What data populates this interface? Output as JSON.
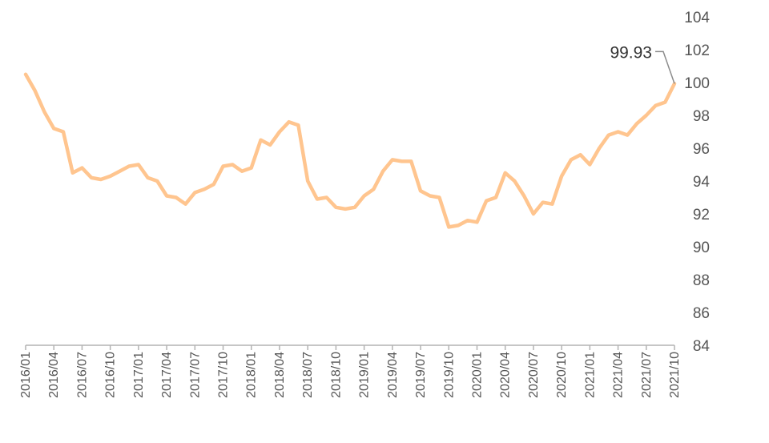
{
  "chart_data": {
    "type": "line",
    "title": "",
    "xlabel": "",
    "ylabel": "",
    "ylim": [
      84,
      104
    ],
    "yticks": [
      "84",
      "86",
      "88",
      "90",
      "92",
      "94",
      "96",
      "98",
      "100",
      "102",
      "104"
    ],
    "y_axis_position": "right",
    "grid": false,
    "legend": "none",
    "xticks": [
      "2016/01",
      "2016/04",
      "2016/07",
      "2016/10",
      "2017/01",
      "2017/04",
      "2017/07",
      "2017/10",
      "2018/01",
      "2018/04",
      "2018/07",
      "2018/10",
      "2019/01",
      "2019/04",
      "2019/07",
      "2019/10",
      "2020/01",
      "2020/04",
      "2020/07",
      "2020/10",
      "2021/01",
      "2021/04",
      "2021/07",
      "2021/10"
    ],
    "line_color": "#FFC58F",
    "annotation": {
      "text": "99.93",
      "x": "2021/10",
      "y": 99.93
    },
    "series": [
      {
        "x": [
          "2016/01",
          "2016/02",
          "2016/03",
          "2016/04",
          "2016/05",
          "2016/06",
          "2016/07",
          "2016/08",
          "2016/09",
          "2016/10",
          "2016/11",
          "2016/12",
          "2017/01",
          "2017/02",
          "2017/03",
          "2017/04",
          "2017/05",
          "2017/06",
          "2017/07",
          "2017/08",
          "2017/09",
          "2017/10",
          "2017/11",
          "2017/12",
          "2018/01",
          "2018/02",
          "2018/03",
          "2018/04",
          "2018/05",
          "2018/06",
          "2018/07",
          "2018/08",
          "2018/09",
          "2018/10",
          "2018/11",
          "2018/12",
          "2019/01",
          "2019/02",
          "2019/03",
          "2019/04",
          "2019/05",
          "2019/06",
          "2019/07",
          "2019/08",
          "2019/09",
          "2019/10",
          "2019/11",
          "2019/12",
          "2020/01",
          "2020/02",
          "2020/03",
          "2020/04",
          "2020/05",
          "2020/06",
          "2020/07",
          "2020/08",
          "2020/09",
          "2020/10",
          "2020/11",
          "2020/12",
          "2021/01",
          "2021/02",
          "2021/03",
          "2021/04",
          "2021/05",
          "2021/06",
          "2021/07",
          "2021/08",
          "2021/09",
          "2021/10"
        ],
        "values": [
          100.5,
          99.5,
          98.2,
          97.2,
          97.0,
          94.5,
          94.8,
          94.2,
          94.1,
          94.3,
          94.6,
          94.9,
          95.0,
          94.2,
          94.0,
          93.1,
          93.0,
          92.6,
          93.3,
          93.5,
          93.8,
          94.9,
          95.0,
          94.6,
          94.8,
          96.5,
          96.2,
          97.0,
          97.6,
          97.4,
          94.0,
          92.9,
          93.0,
          92.4,
          92.3,
          92.4,
          93.1,
          93.5,
          94.6,
          95.3,
          95.2,
          95.2,
          93.4,
          93.1,
          93.0,
          91.2,
          91.3,
          91.6,
          91.5,
          92.8,
          93.0,
          94.5,
          94.0,
          93.1,
          92.0,
          92.7,
          92.6,
          94.3,
          95.3,
          95.6,
          95.0,
          96.0,
          96.8,
          97.0,
          96.8,
          97.5,
          98.0,
          98.6,
          98.8,
          99.93
        ]
      }
    ]
  }
}
